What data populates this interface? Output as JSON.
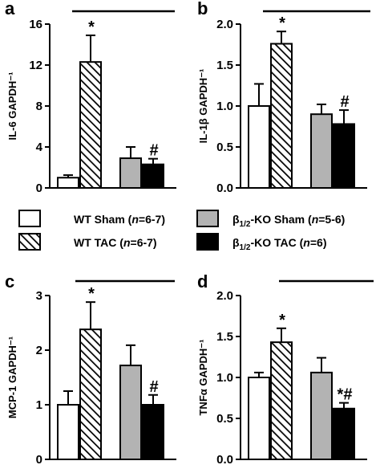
{
  "legend": {
    "wt_sham": {
      "prefix": "WT Sham (",
      "n": "n",
      "suffix": "=6-7)"
    },
    "wt_tac": {
      "prefix": "WT TAC (",
      "n": "n",
      "suffix": "=6-7)"
    },
    "ko_sham": {
      "beta": "β",
      "sub": "1/2",
      "rest": "-KO Sham (",
      "n": "n",
      "suffix": "=5-6)"
    },
    "ko_tac": {
      "beta": "β",
      "sub": "1/2",
      "rest": "-KO TAC (",
      "n": "n",
      "suffix": "=6)"
    }
  },
  "colors": {
    "wt_sham": "#ffffff",
    "wt_tac": "hatched",
    "ko_sham": "#b3b3b3",
    "ko_tac": "#000000"
  },
  "chart_data": [
    {
      "type": "bar",
      "panel": "a",
      "ylabel": "IL-6 GAPDH⁻¹",
      "ylim": [
        0,
        16
      ],
      "yticks": [
        "0",
        "4",
        "8",
        "12",
        "16"
      ],
      "groups": [
        "WT Sham",
        "WT TAC",
        "β1/2-KO Sham",
        "β1/2-KO TAC"
      ],
      "values": [
        1.0,
        12.3,
        2.9,
        2.3
      ],
      "errors": [
        0.25,
        2.6,
        1.1,
        0.55
      ],
      "annotations": [
        "",
        "*",
        "",
        "#"
      ]
    },
    {
      "type": "bar",
      "panel": "b",
      "ylabel": "IL-1β GAPDH⁻¹",
      "ylim": [
        0,
        2.0
      ],
      "yticks": [
        "0.0",
        "0.5",
        "1.0",
        "1.5",
        "2.0"
      ],
      "groups": [
        "WT Sham",
        "WT TAC",
        "β1/2-KO Sham",
        "β1/2-KO TAC"
      ],
      "values": [
        1.0,
        1.76,
        0.9,
        0.78
      ],
      "errors": [
        0.27,
        0.15,
        0.12,
        0.17
      ],
      "annotations": [
        "",
        "*",
        "",
        "#"
      ]
    },
    {
      "type": "bar",
      "panel": "c",
      "ylabel": "MCP-1 GAPDH⁻¹",
      "ylim": [
        0,
        3
      ],
      "yticks": [
        "0",
        "1",
        "2",
        "3"
      ],
      "groups": [
        "WT Sham",
        "WT TAC",
        "β1/2-KO Sham",
        "β1/2-KO TAC"
      ],
      "values": [
        1.0,
        2.38,
        1.72,
        1.0
      ],
      "errors": [
        0.25,
        0.5,
        0.37,
        0.18
      ],
      "annotations": [
        "",
        "*",
        "",
        "#"
      ]
    },
    {
      "type": "bar",
      "panel": "d",
      "ylabel": "TNFα GAPDH⁻¹",
      "ylim": [
        0,
        2.0
      ],
      "yticks": [
        "0.0",
        "0.5",
        "1.0",
        "1.5",
        "2.0"
      ],
      "groups": [
        "WT Sham",
        "WT TAC",
        "β1/2-KO Sham",
        "β1/2-KO TAC"
      ],
      "values": [
        1.0,
        1.43,
        1.06,
        0.62
      ],
      "errors": [
        0.06,
        0.17,
        0.18,
        0.07
      ],
      "annotations": [
        "",
        "*",
        "",
        "*#"
      ]
    }
  ]
}
